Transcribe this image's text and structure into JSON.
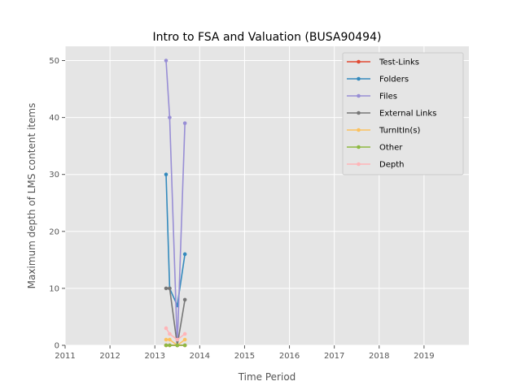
{
  "chart_data": {
    "type": "line",
    "title": "Intro to FSA and Valuation (BUSA90494)",
    "xlabel": "Time Period",
    "ylabel": "Maximum depth of LMS content items",
    "xlim": [
      2011,
      2020
    ],
    "ylim": [
      0,
      52.5
    ],
    "x_ticks": [
      "2011",
      "2012",
      "2013",
      "2014",
      "2015",
      "2016",
      "2017",
      "2018",
      "2019"
    ],
    "y_ticks": [
      "0",
      "10",
      "20",
      "30",
      "40",
      "50"
    ],
    "grid": true,
    "legend_position": "top-right",
    "x": [
      2013.25,
      2013.33,
      2013.5,
      2013.67
    ],
    "series": [
      {
        "name": "Test-Links",
        "color": "#E24A33",
        "values": [
          0,
          0,
          0,
          0
        ]
      },
      {
        "name": "Folders",
        "color": "#348ABD",
        "values": [
          30,
          10,
          7,
          16
        ]
      },
      {
        "name": "Files",
        "color": "#988ED5",
        "values": [
          50,
          40,
          0,
          39
        ]
      },
      {
        "name": "External Links",
        "color": "#777777",
        "values": [
          10,
          10,
          0,
          8
        ]
      },
      {
        "name": "TurnItIn(s)",
        "color": "#FBC15E",
        "values": [
          1,
          1,
          0,
          1
        ]
      },
      {
        "name": "Other",
        "color": "#8EBA42",
        "values": [
          0,
          0,
          0,
          0
        ]
      },
      {
        "name": "Depth",
        "color": "#FFB5B8",
        "values": [
          3,
          2,
          1,
          2
        ]
      }
    ]
  }
}
